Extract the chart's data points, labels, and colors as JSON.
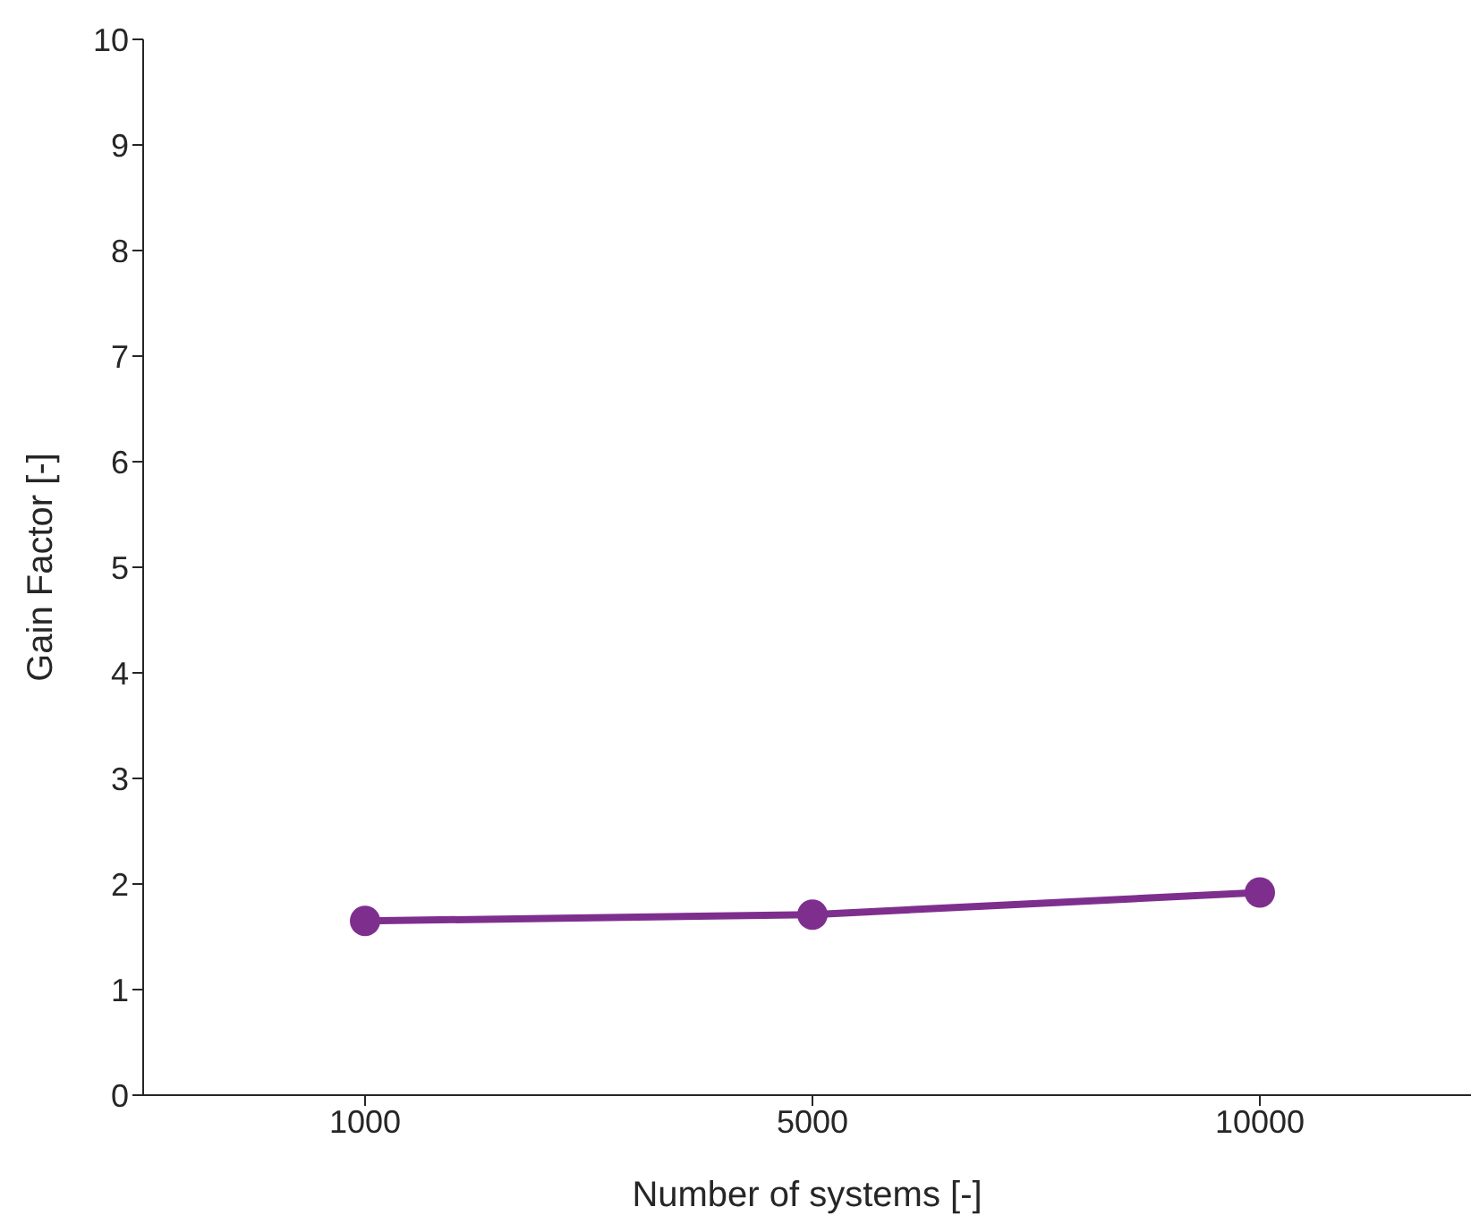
{
  "chart_data": {
    "type": "line",
    "xlabel": "Number of systems [-]",
    "ylabel": "Gain Factor [-]",
    "categories": [
      "1000",
      "5000",
      "10000"
    ],
    "series": [
      {
        "color": "#7e2f8e",
        "values": [
          1.65,
          1.71,
          1.92
        ]
      }
    ],
    "ylim": [
      0,
      10
    ],
    "yticks": [
      0,
      1,
      2,
      3,
      4,
      5,
      6,
      7,
      8,
      9,
      10
    ],
    "grid": false,
    "legend": false,
    "marker": "circle",
    "line_style": "solid"
  }
}
